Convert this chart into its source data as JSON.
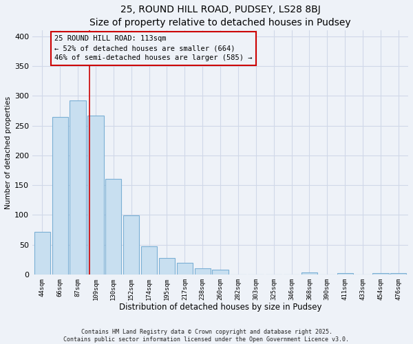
{
  "title1": "25, ROUND HILL ROAD, PUDSEY, LS28 8BJ",
  "title2": "Size of property relative to detached houses in Pudsey",
  "xlabel": "Distribution of detached houses by size in Pudsey",
  "ylabel": "Number of detached properties",
  "bar_labels": [
    "44sqm",
    "66sqm",
    "87sqm",
    "109sqm",
    "130sqm",
    "152sqm",
    "174sqm",
    "195sqm",
    "217sqm",
    "238sqm",
    "260sqm",
    "282sqm",
    "303sqm",
    "325sqm",
    "346sqm",
    "368sqm",
    "390sqm",
    "411sqm",
    "433sqm",
    "454sqm",
    "476sqm"
  ],
  "bar_values": [
    72,
    265,
    293,
    267,
    160,
    99,
    47,
    27,
    19,
    10,
    8,
    0,
    0,
    0,
    0,
    3,
    0,
    2,
    0,
    2,
    2
  ],
  "bar_color": "#c8dff0",
  "bar_edge_color": "#7aafd4",
  "vline_x_index": 3,
  "vline_color": "#cc0000",
  "ylim": [
    0,
    410
  ],
  "yticks": [
    0,
    50,
    100,
    150,
    200,
    250,
    300,
    350,
    400
  ],
  "annotation_line1": "25 ROUND HILL ROAD: 113sqm",
  "annotation_line2": "← 52% of detached houses are smaller (664)",
  "annotation_line3": "46% of semi-detached houses are larger (585) →",
  "footer1": "Contains HM Land Registry data © Crown copyright and database right 2025.",
  "footer2": "Contains public sector information licensed under the Open Government Licence v3.0.",
  "background_color": "#eef2f8",
  "grid_color": "#d0d8e8",
  "title_fontsize": 10,
  "subtitle_fontsize": 9
}
